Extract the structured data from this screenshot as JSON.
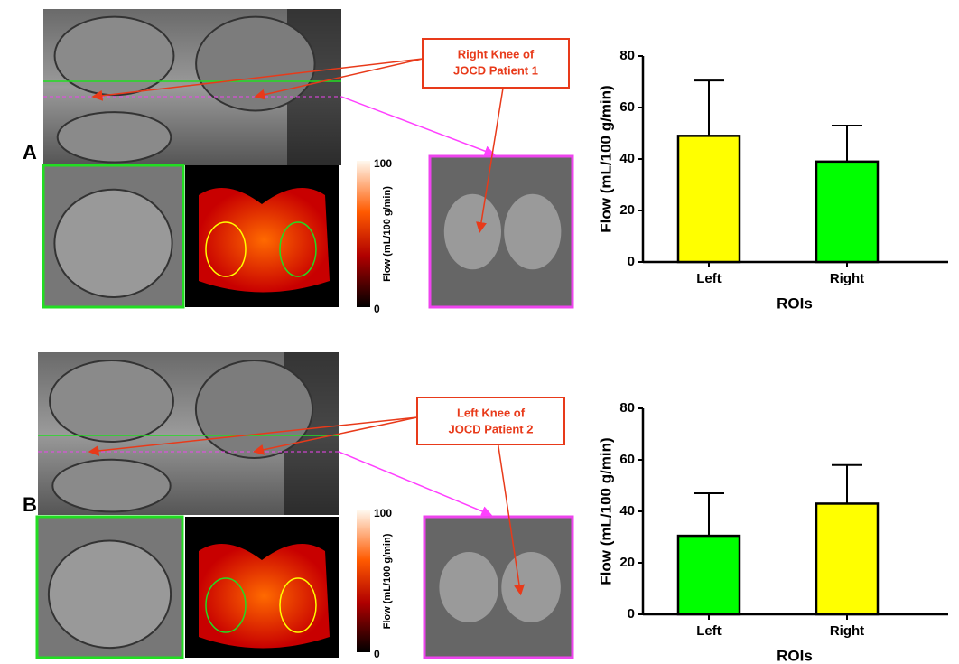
{
  "chart_data": [
    {
      "type": "bar",
      "categories": [
        "Left",
        "Right"
      ],
      "values": [
        49,
        39
      ],
      "errors": [
        21.5,
        14
      ],
      "colors": [
        "#ffff00",
        "#00ff00"
      ],
      "ylabel": "Flow (mL/100 g/min)",
      "xlabel": "ROIs",
      "ylim": [
        0,
        80
      ],
      "yticks": [
        0,
        20,
        40,
        60,
        80
      ]
    },
    {
      "type": "bar",
      "categories": [
        "Left",
        "Right"
      ],
      "values": [
        30.5,
        43
      ],
      "errors": [
        16.5,
        15
      ],
      "colors": [
        "#00ff00",
        "#ffff00"
      ],
      "ylabel": "Flow (mL/100 g/min)",
      "xlabel": "ROIs",
      "ylim": [
        0,
        80
      ],
      "yticks": [
        0,
        20,
        40,
        60,
        80
      ]
    }
  ],
  "panels": [
    {
      "label": "A",
      "callout": [
        "Right Knee of",
        "JOCD Patient 1"
      ],
      "colorbar": {
        "label": "Flow (mL/100 g/min)",
        "max": 100,
        "min": 0
      }
    },
    {
      "label": "B",
      "callout": [
        "Left Knee of",
        "JOCD Patient 2"
      ],
      "colorbar": {
        "label": "Flow (mL/100 g/min)",
        "max": 100,
        "min": 0
      }
    }
  ]
}
